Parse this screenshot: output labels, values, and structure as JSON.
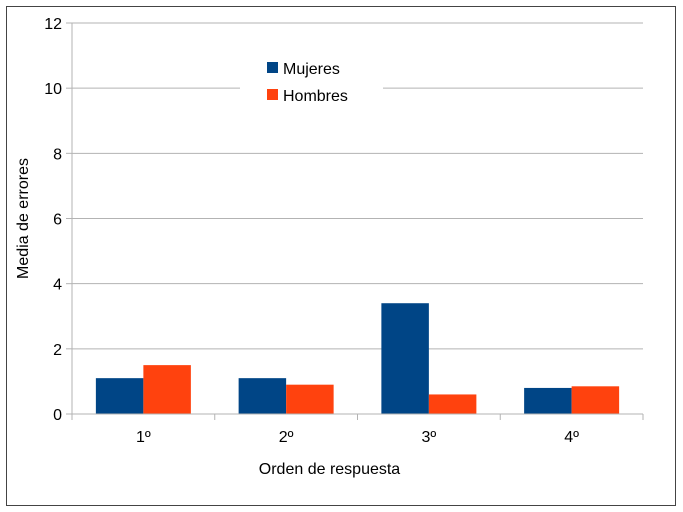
{
  "chart_data": {
    "type": "bar",
    "title": "",
    "xlabel": "Orden de respuesta",
    "ylabel": "Media de errores",
    "categories": [
      "1º",
      "2º",
      "3º",
      "4º"
    ],
    "ylim": [
      0,
      12
    ],
    "yticks": [
      0,
      2,
      4,
      6,
      8,
      10,
      12
    ],
    "grid": true,
    "legend_position": "top-center",
    "series": [
      {
        "name": "Mujeres",
        "color": "#004586",
        "values": [
          1.1,
          1.1,
          3.4,
          0.8
        ]
      },
      {
        "name": "Hombres",
        "color": "#ff420e",
        "values": [
          1.5,
          0.9,
          0.6,
          0.85
        ]
      }
    ]
  }
}
